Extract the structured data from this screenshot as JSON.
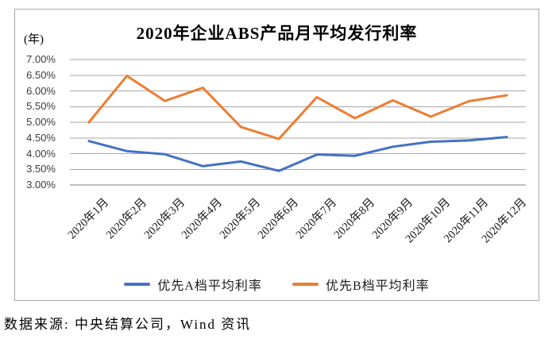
{
  "chart": {
    "y_axis_unit_label": "(年)"
  },
  "chart_data": {
    "type": "line",
    "title": "2020年企业ABS产品月平均发行利率",
    "categories": [
      "2020年1月",
      "2020年2月",
      "2020年3月",
      "2020年4月",
      "2020年5月",
      "2020年6月",
      "2020年7月",
      "2020年8月",
      "2020年9月",
      "2020年10月",
      "2020年11月",
      "2020年12月"
    ],
    "series": [
      {
        "name": "优先A档平均利率",
        "color": "#4472C4",
        "values": [
          4.4,
          4.08,
          3.98,
          3.6,
          3.75,
          3.45,
          3.97,
          3.93,
          4.22,
          4.38,
          4.42,
          4.53
        ]
      },
      {
        "name": "优先B档平均利率",
        "color": "#ED7D31",
        "values": [
          5.0,
          6.48,
          5.68,
          6.1,
          4.85,
          4.47,
          5.8,
          5.13,
          5.7,
          5.18,
          5.67,
          5.86
        ]
      }
    ],
    "y_ticks": [
      "7.00%",
      "6.50%",
      "6.00%",
      "5.50%",
      "5.00%",
      "4.50%",
      "4.00%",
      "3.50%",
      "3.00%"
    ],
    "ylim": [
      3.0,
      7.0
    ],
    "y_step": 0.5,
    "grid": true,
    "legend_position": "bottom"
  },
  "colors": {
    "gridline": "#a6a6a6",
    "axis_line": "#7f7f7f",
    "frame_border": "#a6a6a6",
    "series_a": "#4472C4",
    "series_b": "#ED7D31"
  },
  "footer": {
    "source_text": "数据来源: 中央结算公司，Wind 资讯"
  }
}
